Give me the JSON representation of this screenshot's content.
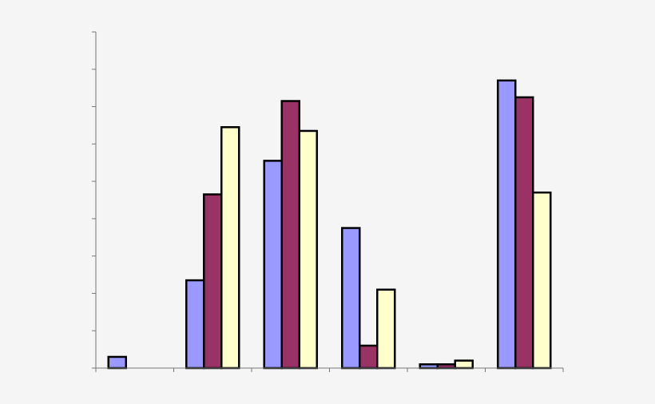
{
  "chart_data": {
    "type": "bar",
    "categories": [
      "",
      "",
      "",
      "",
      "",
      ""
    ],
    "series": [
      {
        "values": [
          0.3,
          2.35,
          5.55,
          3.75,
          0.1,
          7.7
        ]
      },
      {
        "values": [
          0.0,
          4.65,
          7.15,
          0.6,
          0.1,
          7.25
        ]
      },
      {
        "values": [
          0.0,
          6.45,
          6.35,
          2.1,
          0.2,
          4.7
        ]
      }
    ],
    "colors": [
      "#9999ff",
      "#993366",
      "#ffffcc"
    ],
    "ylim": [
      0,
      9
    ],
    "y_tick_step": 1,
    "grid": false,
    "legend": "none",
    "bar_outline": "#000000",
    "background": "#f5f5f5"
  }
}
